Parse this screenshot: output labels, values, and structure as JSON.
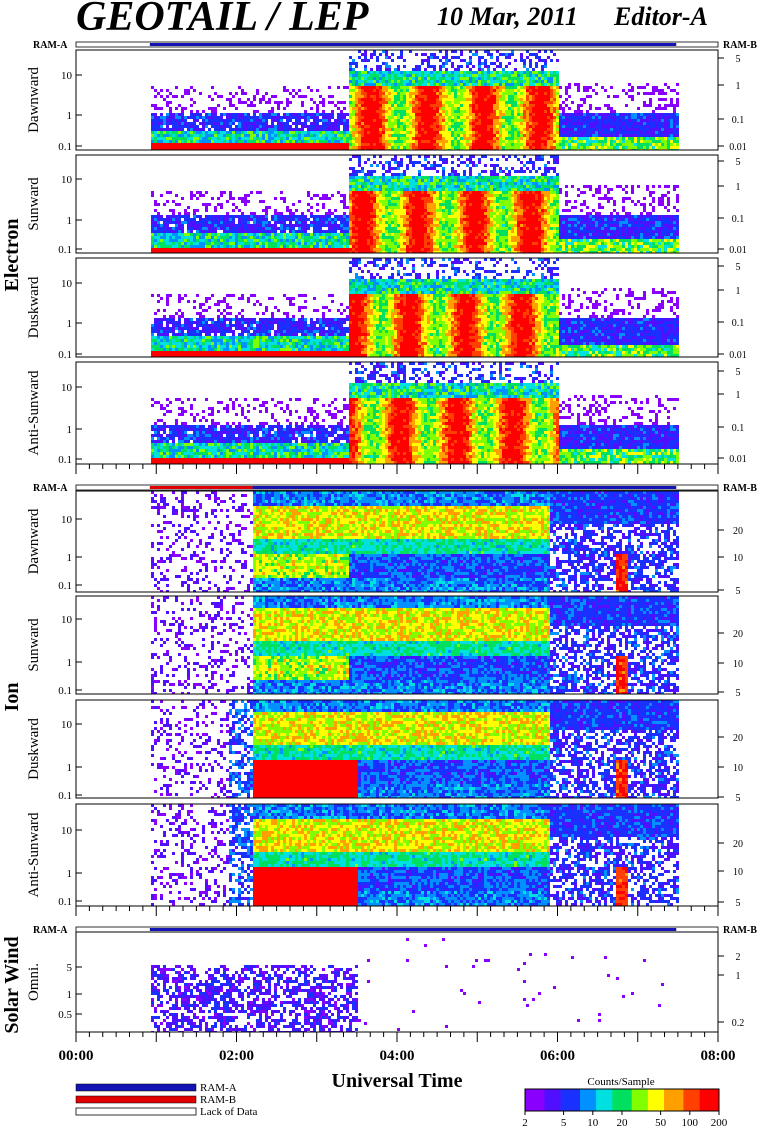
{
  "header": {
    "instrument": "GEOTAIL / LEP",
    "date": "10 Mar, 2011",
    "editor": "Editor-A"
  },
  "colors": {
    "ram_a": "#1414b4",
    "ram_b": "#e00000",
    "lack": "#ffffff",
    "palette": [
      "#8a00ff",
      "#5010ff",
      "#1a30ff",
      "#0090ff",
      "#00e0e0",
      "#00e060",
      "#80ff00",
      "#ffff00",
      "#ffa000",
      "#ff4000",
      "#ff0000"
    ]
  },
  "chart_data": {
    "type": "heatmap",
    "xlabel": "Universal Time",
    "x_ticks": [
      "00:00",
      "02:00",
      "04:00",
      "06:00",
      "08:00"
    ],
    "x_range_hours": [
      0,
      8
    ],
    "data_coverage_hours": [
      0.92,
      7.48
    ],
    "groups": [
      {
        "name": "Electron",
        "ram_left": "RAM-A",
        "ram_right": "RAM-B",
        "ram_bar": [
          {
            "from": 0.92,
            "to": 7.48,
            "mode": "RAM-A"
          }
        ],
        "left_ticks": [
          "10",
          "1",
          "0.1"
        ],
        "right_ticks": [
          "5",
          "1",
          "0.1",
          "0.01"
        ],
        "panels": [
          {
            "label": "Dawnward"
          },
          {
            "label": "Sunward"
          },
          {
            "label": "Duskward"
          },
          {
            "label": "Anti-Sunward"
          }
        ]
      },
      {
        "name": "Ion",
        "ram_left": "RAM-A",
        "ram_right": "RAM-B",
        "ram_bar": [
          {
            "from": 0.92,
            "to": 2.2,
            "mode": "RAM-B"
          },
          {
            "from": 2.2,
            "to": 7.48,
            "mode": "RAM-A"
          }
        ],
        "left_ticks": [
          "10",
          "1",
          "0.1"
        ],
        "right_ticks": [
          "20",
          "10",
          "5"
        ],
        "panels": [
          {
            "label": "Dawnward"
          },
          {
            "label": "Sunward"
          },
          {
            "label": "Duskward"
          },
          {
            "label": "Anti-Sunward"
          }
        ]
      },
      {
        "name": "Solar Wind",
        "ram_left": "RAM-A",
        "ram_right": "RAM-B",
        "ram_bar": [
          {
            "from": 0.92,
            "to": 7.48,
            "mode": "RAM-A"
          }
        ],
        "left_ticks": [
          "5",
          "1",
          "0.5"
        ],
        "right_ticks": [
          "2",
          "1",
          "0.2"
        ],
        "panels": [
          {
            "label": "Omni."
          }
        ]
      }
    ],
    "legend": {
      "items": [
        "RAM-A",
        "RAM-B",
        "Lack of Data"
      ]
    },
    "colorbar": {
      "title": "Counts/Sample",
      "ticks": [
        "2",
        "5",
        "10",
        "20",
        "50",
        "100",
        "200"
      ],
      "scale": "log"
    }
  }
}
